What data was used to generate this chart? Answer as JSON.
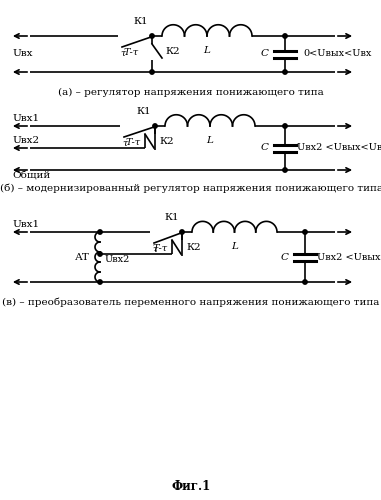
{
  "fig_title": "Фиг.1",
  "caption_a": "(а) – регулятор напряжения понижающего типа",
  "caption_b": "(б) – модернизированный регулятор напряжения понижающего типа",
  "caption_c": "(в) – преобразователь переменного напряжения понижающего типа",
  "bg_color": "#ffffff",
  "line_color": "#000000",
  "font_size": 7.5,
  "lw": 1.2
}
